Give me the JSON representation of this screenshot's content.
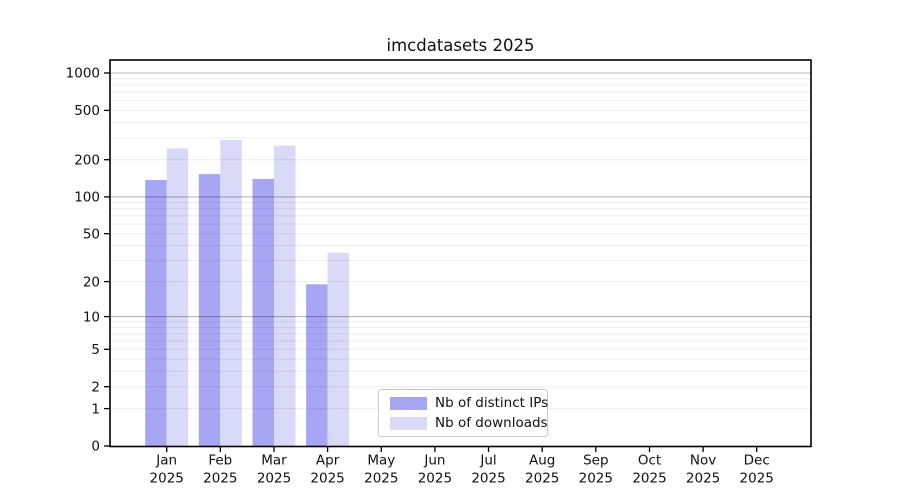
{
  "chart_data": {
    "type": "bar",
    "title": "imcdatasets 2025",
    "categories": [
      "Jan",
      "Feb",
      "Mar",
      "Apr",
      "May",
      "Jun",
      "Jul",
      "Aug",
      "Sep",
      "Oct",
      "Nov",
      "Dec"
    ],
    "x_tick_second_line": "2025",
    "series": [
      {
        "name": "Nb of distinct IPs",
        "color": "#a6a6f5",
        "values": [
          137,
          153,
          140,
          19,
          0,
          0,
          0,
          0,
          0,
          0,
          0,
          0
        ]
      },
      {
        "name": "Nb of downloads",
        "color": "#d9d9f8",
        "values": [
          247,
          289,
          260,
          35,
          0,
          0,
          0,
          0,
          0,
          0,
          0,
          0
        ]
      }
    ],
    "y_axis": {
      "scale": "log10(value+1)",
      "ticks": [
        0,
        1,
        2,
        5,
        10,
        20,
        50,
        100,
        200,
        500,
        1000
      ],
      "max": 1273,
      "minor_gridlines": [
        1,
        2,
        3,
        4,
        5,
        6,
        7,
        8,
        9,
        20,
        30,
        40,
        50,
        60,
        70,
        80,
        90,
        200,
        300,
        400,
        500,
        600,
        700,
        800,
        900
      ],
      "major_gridlines": [
        10,
        100,
        1000
      ]
    },
    "legend": {
      "location": "lower center"
    },
    "colors": {
      "background": "#ffffff",
      "spine": "#000000",
      "grid_minor": "rgba(0,0,0,0.07)",
      "grid_major": "rgba(0,0,0,0.28)",
      "tick_text": "#111111"
    }
  }
}
